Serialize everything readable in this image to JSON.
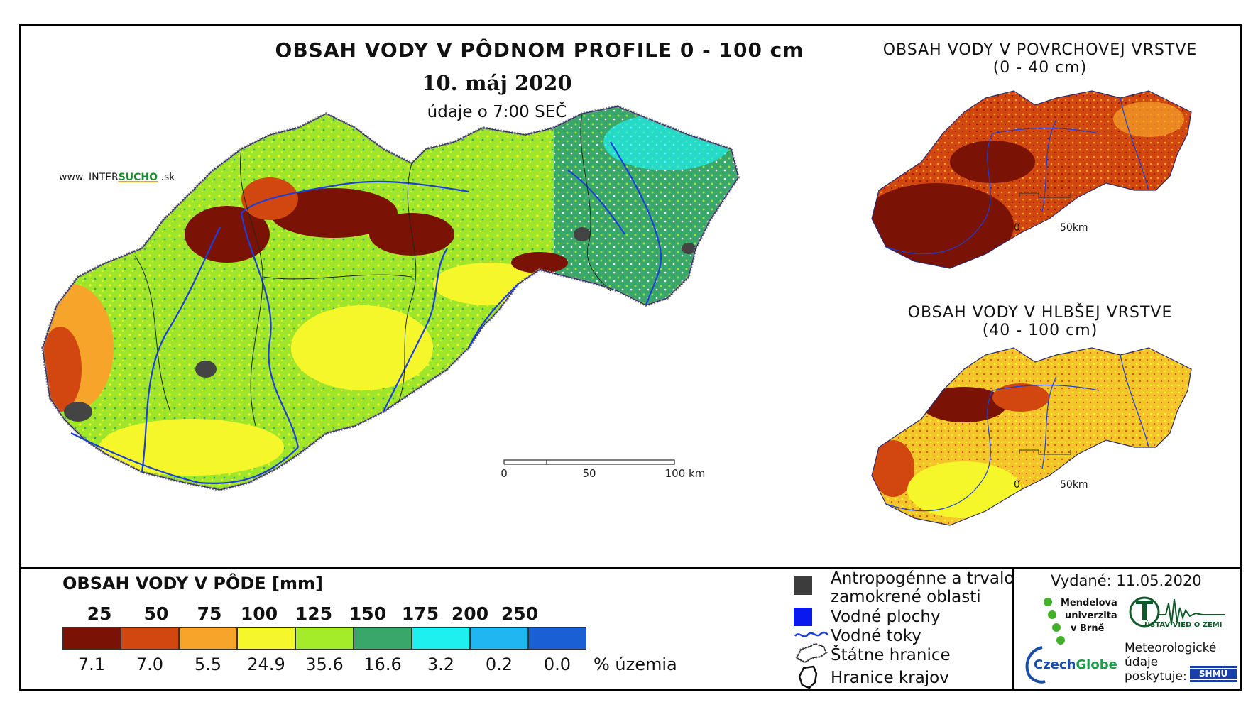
{
  "main": {
    "title": "OBSAH VODY V PÔDNOM PROFILE 0 - 100 cm",
    "date": "10. máj 2020",
    "time": "údaje o 7:00 SEČ",
    "source_prefix": "www. INTER",
    "source_accent": "SUCHO",
    "source_suffix": " .sk",
    "scale": [
      "0",
      "50",
      "100 km"
    ]
  },
  "inset_top": {
    "title_line1": "OBSAH VODY V POVRCHOVEJ VRSTVE",
    "title_line2": "(0 - 40 cm)",
    "scale": [
      "0",
      "50km"
    ]
  },
  "inset_bottom": {
    "title_line1": "OBSAH VODY V HLBŠEJ VRSTVE",
    "title_line2": "(40 - 100 cm)",
    "scale": [
      "0",
      "50km"
    ]
  },
  "legend": {
    "title": "OBSAH VODY V PÔDE [mm]",
    "ticks": [
      "25",
      "50",
      "75",
      "100",
      "125",
      "150",
      "175",
      "200",
      "250"
    ],
    "classes": [
      {
        "color": "#7a1205",
        "pct": "7.1"
      },
      {
        "color": "#d1470f",
        "pct": "7.0"
      },
      {
        "color": "#f7a42a",
        "pct": "5.5"
      },
      {
        "color": "#f6f72a",
        "pct": "24.9"
      },
      {
        "color": "#a4eb2a",
        "pct": "35.6"
      },
      {
        "color": "#3aa76a",
        "pct": "16.6"
      },
      {
        "color": "#1ef0f0",
        "pct": "3.2"
      },
      {
        "color": "#1fb6f2",
        "pct": "0.2"
      },
      {
        "color": "#1a5fd4",
        "pct": "0.0"
      }
    ],
    "unit": "% územia"
  },
  "key": {
    "anthropogenic_line1": "Antropogénne a trvalo",
    "anthropogenic_line2": "zamokrené oblasti",
    "water_bodies": "Vodné plochy",
    "streams": "Vodné toky",
    "state_border": "Štátne hranice",
    "region_border": "Hranice krajov"
  },
  "issued": "Vydané: 11.05.2020",
  "logos": {
    "mendel_line1": "Mendelova",
    "mendel_line2": "univerzita",
    "mendel_line3": "v Brně",
    "czechglobe_a": "Czech",
    "czechglobe_b": "Globe",
    "ustav": "ÚSTAV VIED O ZEMI",
    "shmu": "SHMÚ",
    "meteo_line1": "Meteorologické",
    "meteo_line2": "údaje",
    "meteo_line3": "poskytuje:"
  }
}
